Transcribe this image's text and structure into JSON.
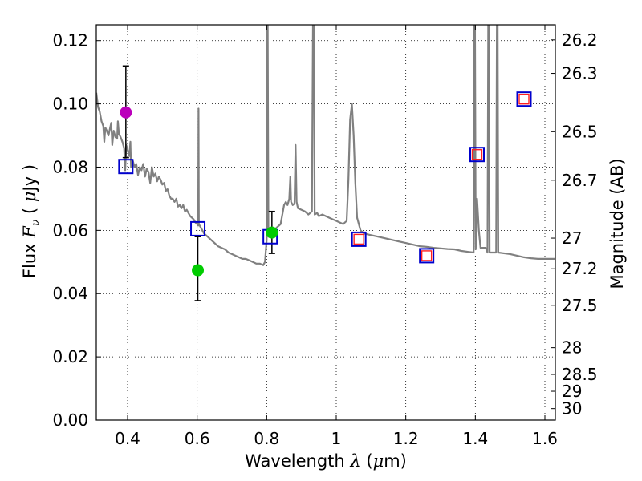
{
  "chart_data": {
    "type": "line",
    "title": "",
    "xlabel": {
      "prefix": "Wavelength  ",
      "symbol": "λ",
      "unit_open": " (",
      "unit_sym": "μ",
      "unit_close": "m)"
    },
    "ylabel": {
      "prefix": "Flux  ",
      "symbol": "F",
      "sub": "ν",
      "unit_open": "  ( ",
      "unit_sym": "μ",
      "unit_close": "Jy )"
    },
    "y2label": "Magnitude (AB)",
    "xlim": [
      0.31,
      1.63
    ],
    "ylim": [
      0.0,
      0.125
    ],
    "grid": true,
    "x_ticks": [
      {
        "value": 0.4,
        "label": "0.4"
      },
      {
        "value": 0.6,
        "label": "0.6"
      },
      {
        "value": 0.8,
        "label": "0.8"
      },
      {
        "value": 1.0,
        "label": "1"
      },
      {
        "value": 1.2,
        "label": "1.2"
      },
      {
        "value": 1.4,
        "label": "1.4"
      },
      {
        "value": 1.6,
        "label": "1.6"
      }
    ],
    "y_ticks": [
      {
        "value": 0.0,
        "label": "0.00"
      },
      {
        "value": 0.02,
        "label": "0.02"
      },
      {
        "value": 0.04,
        "label": "0.04"
      },
      {
        "value": 0.06,
        "label": "0.06"
      },
      {
        "value": 0.08,
        "label": "0.08"
      },
      {
        "value": 0.1,
        "label": "0.10"
      },
      {
        "value": 0.12,
        "label": "0.12"
      }
    ],
    "mag_ticks": [
      {
        "mag": 26.2,
        "label": "26.2"
      },
      {
        "mag": 26.3,
        "label": "26.3"
      },
      {
        "mag": 26.5,
        "label": "26.5"
      },
      {
        "mag": 26.7,
        "label": "26.7"
      },
      {
        "mag": 27.0,
        "label": "27"
      },
      {
        "mag": 27.2,
        "label": "27.2"
      },
      {
        "mag": 27.5,
        "label": "27.5"
      },
      {
        "mag": 28.0,
        "label": "28"
      },
      {
        "mag": 28.5,
        "label": "28.5"
      },
      {
        "mag": 29.0,
        "label": "29"
      },
      {
        "mag": 30.0,
        "label": "30"
      }
    ],
    "series": [
      {
        "name": "model spectrum",
        "kind": "line",
        "color": "#808080",
        "points": [
          [
            0.31,
            0.1035
          ],
          [
            0.315,
            0.099
          ],
          [
            0.32,
            0.0975
          ],
          [
            0.325,
            0.0945
          ],
          [
            0.33,
            0.093
          ],
          [
            0.333,
            0.088
          ],
          [
            0.336,
            0.0925
          ],
          [
            0.34,
            0.0915
          ],
          [
            0.345,
            0.09
          ],
          [
            0.35,
            0.0925
          ],
          [
            0.353,
            0.094
          ],
          [
            0.356,
            0.087
          ],
          [
            0.36,
            0.0915
          ],
          [
            0.365,
            0.0895
          ],
          [
            0.37,
            0.089
          ],
          [
            0.372,
            0.0945
          ],
          [
            0.375,
            0.0905
          ],
          [
            0.38,
            0.0895
          ],
          [
            0.385,
            0.088
          ],
          [
            0.39,
            0.086
          ],
          [
            0.393,
            0.079
          ],
          [
            0.396,
            0.087
          ],
          [
            0.4,
            0.0855
          ],
          [
            0.405,
            0.0835
          ],
          [
            0.408,
            0.088
          ],
          [
            0.41,
            0.08
          ],
          [
            0.415,
            0.082
          ],
          [
            0.42,
            0.08
          ],
          [
            0.425,
            0.081
          ],
          [
            0.43,
            0.0775
          ],
          [
            0.435,
            0.08
          ],
          [
            0.44,
            0.079
          ],
          [
            0.445,
            0.081
          ],
          [
            0.45,
            0.077
          ],
          [
            0.455,
            0.0795
          ],
          [
            0.46,
            0.0785
          ],
          [
            0.465,
            0.075
          ],
          [
            0.47,
            0.08
          ],
          [
            0.475,
            0.077
          ],
          [
            0.48,
            0.078
          ],
          [
            0.485,
            0.0755
          ],
          [
            0.49,
            0.077
          ],
          [
            0.495,
            0.076
          ],
          [
            0.5,
            0.0745
          ],
          [
            0.505,
            0.075
          ],
          [
            0.51,
            0.0725
          ],
          [
            0.515,
            0.073
          ],
          [
            0.52,
            0.071
          ],
          [
            0.525,
            0.07
          ],
          [
            0.53,
            0.07
          ],
          [
            0.535,
            0.069
          ],
          [
            0.54,
            0.07
          ],
          [
            0.545,
            0.0675
          ],
          [
            0.55,
            0.068
          ],
          [
            0.555,
            0.067
          ],
          [
            0.56,
            0.068
          ],
          [
            0.565,
            0.066
          ],
          [
            0.57,
            0.0665
          ],
          [
            0.575,
            0.0655
          ],
          [
            0.58,
            0.0645
          ],
          [
            0.585,
            0.064
          ],
          [
            0.59,
            0.0635
          ],
          [
            0.595,
            0.0625
          ],
          [
            0.6,
            0.062
          ],
          [
            0.603,
            0.0615
          ],
          [
            0.604,
            0.0985
          ],
          [
            0.605,
            0.062
          ],
          [
            0.61,
            0.061
          ],
          [
            0.62,
            0.059
          ],
          [
            0.63,
            0.058
          ],
          [
            0.64,
            0.057
          ],
          [
            0.65,
            0.056
          ],
          [
            0.66,
            0.055
          ],
          [
            0.67,
            0.0545
          ],
          [
            0.68,
            0.054
          ],
          [
            0.69,
            0.053
          ],
          [
            0.7,
            0.0525
          ],
          [
            0.71,
            0.052
          ],
          [
            0.72,
            0.0515
          ],
          [
            0.73,
            0.051
          ],
          [
            0.74,
            0.051
          ],
          [
            0.75,
            0.0505
          ],
          [
            0.76,
            0.05
          ],
          [
            0.77,
            0.0495
          ],
          [
            0.78,
            0.0495
          ],
          [
            0.79,
            0.049
          ],
          [
            0.795,
            0.05
          ],
          [
            0.8,
            0.057
          ],
          [
            0.801,
            0.125
          ],
          [
            0.803,
            0.125
          ],
          [
            0.805,
            0.058
          ],
          [
            0.81,
            0.059
          ],
          [
            0.815,
            0.0585
          ],
          [
            0.82,
            0.06
          ],
          [
            0.83,
            0.061
          ],
          [
            0.84,
            0.062
          ],
          [
            0.85,
            0.068
          ],
          [
            0.855,
            0.069
          ],
          [
            0.86,
            0.068
          ],
          [
            0.865,
            0.07
          ],
          [
            0.868,
            0.077
          ],
          [
            0.87,
            0.069
          ],
          [
            0.875,
            0.068
          ],
          [
            0.88,
            0.0685
          ],
          [
            0.883,
            0.087
          ],
          [
            0.886,
            0.069
          ],
          [
            0.89,
            0.067
          ],
          [
            0.9,
            0.0665
          ],
          [
            0.91,
            0.066
          ],
          [
            0.92,
            0.065
          ],
          [
            0.93,
            0.066
          ],
          [
            0.933,
            0.125
          ],
          [
            0.936,
            0.125
          ],
          [
            0.938,
            0.065
          ],
          [
            0.945,
            0.0655
          ],
          [
            0.95,
            0.0645
          ],
          [
            0.96,
            0.065
          ],
          [
            0.97,
            0.0645
          ],
          [
            0.98,
            0.064
          ],
          [
            0.99,
            0.0635
          ],
          [
            1.0,
            0.063
          ],
          [
            1.01,
            0.0625
          ],
          [
            1.02,
            0.062
          ],
          [
            1.03,
            0.063
          ],
          [
            1.035,
            0.076
          ],
          [
            1.04,
            0.095
          ],
          [
            1.045,
            0.1
          ],
          [
            1.05,
            0.09
          ],
          [
            1.055,
            0.075
          ],
          [
            1.06,
            0.064
          ],
          [
            1.07,
            0.06
          ],
          [
            1.08,
            0.059
          ],
          [
            1.1,
            0.0585
          ],
          [
            1.12,
            0.058
          ],
          [
            1.14,
            0.0575
          ],
          [
            1.16,
            0.057
          ],
          [
            1.18,
            0.0565
          ],
          [
            1.2,
            0.056
          ],
          [
            1.22,
            0.0555
          ],
          [
            1.24,
            0.055
          ],
          [
            1.26,
            0.0548
          ],
          [
            1.28,
            0.0545
          ],
          [
            1.3,
            0.0543
          ],
          [
            1.32,
            0.0541
          ],
          [
            1.34,
            0.054
          ],
          [
            1.36,
            0.0535
          ],
          [
            1.38,
            0.0532
          ],
          [
            1.395,
            0.053
          ],
          [
            1.397,
            0.125
          ],
          [
            1.399,
            0.125
          ],
          [
            1.401,
            0.054
          ],
          [
            1.405,
            0.07
          ],
          [
            1.41,
            0.06
          ],
          [
            1.415,
            0.0545
          ],
          [
            1.42,
            0.0545
          ],
          [
            1.43,
            0.0545
          ],
          [
            1.435,
            0.053
          ],
          [
            1.437,
            0.125
          ],
          [
            1.439,
            0.125
          ],
          [
            1.441,
            0.053
          ],
          [
            1.45,
            0.053
          ],
          [
            1.46,
            0.053
          ],
          [
            1.462,
            0.125
          ],
          [
            1.464,
            0.125
          ],
          [
            1.466,
            0.053
          ],
          [
            1.48,
            0.0528
          ],
          [
            1.5,
            0.0525
          ],
          [
            1.52,
            0.052
          ],
          [
            1.54,
            0.0515
          ],
          [
            1.56,
            0.0512
          ],
          [
            1.58,
            0.051
          ],
          [
            1.6,
            0.051
          ],
          [
            1.63,
            0.051
          ]
        ]
      },
      {
        "name": "model photometry",
        "kind": "open-square",
        "color": "#0000cc",
        "points": [
          [
            0.395,
            0.0802
          ],
          [
            0.602,
            0.0605
          ],
          [
            0.81,
            0.058
          ],
          [
            1.065,
            0.0572
          ],
          [
            1.26,
            0.052
          ],
          [
            1.405,
            0.084
          ],
          [
            1.54,
            0.1015
          ]
        ]
      },
      {
        "name": "upper-limit photometry",
        "kind": "open-square",
        "color": "#ff2020",
        "points": [
          [
            1.065,
            0.0572
          ],
          [
            1.26,
            0.052
          ],
          [
            1.405,
            0.084
          ],
          [
            1.54,
            0.1015
          ]
        ]
      },
      {
        "name": "observed detections",
        "kind": "point",
        "color": "#00cc00",
        "points": [
          [
            0.602,
            0.0474
          ],
          [
            0.815,
            0.0593
          ]
        ]
      },
      {
        "name": "observed marginal",
        "kind": "point",
        "color": "#bb00bb",
        "points": [
          [
            0.395,
            0.0973
          ]
        ]
      },
      {
        "name": "error bars",
        "kind": "errorbar",
        "color": "#000000",
        "points": [
          [
            0.395,
            0.083,
            0.112
          ],
          [
            0.602,
            0.0378,
            0.058
          ],
          [
            0.815,
            0.0527,
            0.066
          ]
        ]
      }
    ]
  }
}
